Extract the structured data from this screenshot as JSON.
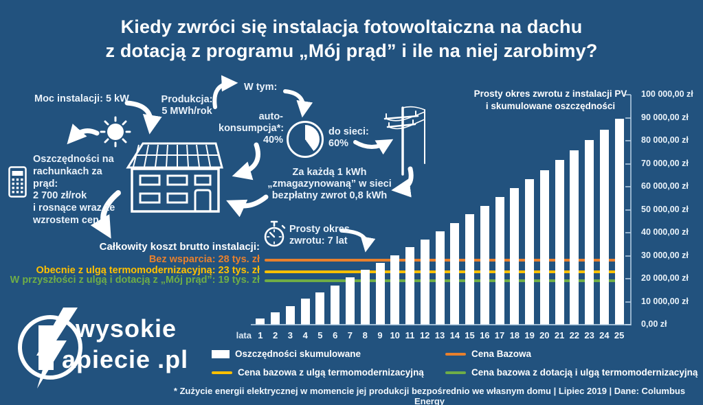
{
  "title": "Kiedy zwróci się instalacja fotowoltaiczna na dachu\nz dotacją z programu „Mój prąd” i ile na niej zarobimy?",
  "diagram": {
    "moc": "Moc instalacji: 5 kW",
    "produkcja": "Produkcja:\n5 MWh/rok",
    "w_tym": "W tym:",
    "autokonsumpcja": "auto-\nkonsumpcja*:\n40%",
    "do_sieci": "do sieci:\n60%",
    "oszczednosci": "Oszczędności na\nrachunkach za prąd:\n2 700 zł/rok\ni rosnące wraz ze\nwzrostem cen",
    "za_kazda": "Za każdą 1 kWh\n„zmagazynowaną” w sieci\nbezpłatny zwrot 0,8 kWh",
    "okres_zwrotu": "Prosty okres\nzwrotu: 7 lat",
    "koszt_header": "Całkowity koszt brutto instalacji:"
  },
  "chart_data": {
    "type": "bar",
    "title": "Prosty okres zwrotu z instalacji PV\ni skumulowane oszczędności",
    "x_axis_prefix": "lata",
    "categories": [
      1,
      2,
      3,
      4,
      5,
      6,
      7,
      8,
      9,
      10,
      11,
      12,
      13,
      14,
      15,
      16,
      17,
      18,
      19,
      20,
      21,
      22,
      23,
      24,
      25
    ],
    "series": [
      {
        "name": "Oszczędności skumulowane",
        "values": [
          2700,
          5400,
          8200,
          11300,
          14100,
          17100,
          20700,
          24000,
          26900,
          30300,
          33800,
          37100,
          40700,
          44300,
          48100,
          51800,
          55400,
          59400,
          63400,
          67300,
          71800,
          75700,
          80300,
          84900,
          89700
        ]
      }
    ],
    "reference_lines": [
      {
        "label": "Bez wsparcia: 28 tys. zł",
        "legend_label": "Cena Bazowa",
        "value": 28000,
        "color": "#E8802D"
      },
      {
        "label": "Obecnie z ulgą termomodernizacyjną: 23 tys. zł",
        "legend_label": "Cena bazowa z ulgą termomodernizacyjną",
        "value": 23000,
        "color": "#FFC000"
      },
      {
        "label": "W przyszłości z ulgą i dotacją z „Mój prąd”: 19 tys. zł",
        "legend_label": "Cena bazowa z dotacją i ulgą termomodernizacyjną",
        "value": 19000,
        "color": "#6FAD47"
      }
    ],
    "ylim": [
      0,
      100000
    ],
    "ytick_step": 10000,
    "ytick_labels": [
      "0,00 zł",
      "10 000,00 zł",
      "20 000,00 zł",
      "30 000,00 zł",
      "40 000,00 zł",
      "50 000,00 zł",
      "60 000,00 zł",
      "70 000,00 zł",
      "80 000,00 zł",
      "90 000,00 zł",
      "100 000,00 zł"
    ],
    "grid": false,
    "legend_position": "bottom",
    "bar_color": "#FFFFFF"
  },
  "legend": {
    "items": [
      {
        "label": "Oszczędności skumulowane",
        "swatch": "bar",
        "color": "#FFFFFF"
      },
      {
        "label": "Cena Bazowa",
        "swatch": "line",
        "color": "#E8802D"
      },
      {
        "label": "Cena bazowa z ulgą termomodernizacyjną",
        "swatch": "line",
        "color": "#FFC000"
      },
      {
        "label": "Cena bazowa z dotacją i ulgą termomodernizacyjną",
        "swatch": "line",
        "color": "#6FAD47"
      }
    ]
  },
  "footnote": "* Zużycie energii elektrycznej w momencie jej produkcji bezpośrednio we własnym domu | Lipiec 2019 | Dane: Columbus Energy",
  "logo": {
    "line1": "wysokie",
    "line2": "apiecie",
    "suffix": ".pl"
  },
  "colors": {
    "background": "#22527E",
    "bars": "#FFFFFF",
    "orange": "#E8802D",
    "yellow": "#FFC000",
    "green": "#6FAD47"
  }
}
